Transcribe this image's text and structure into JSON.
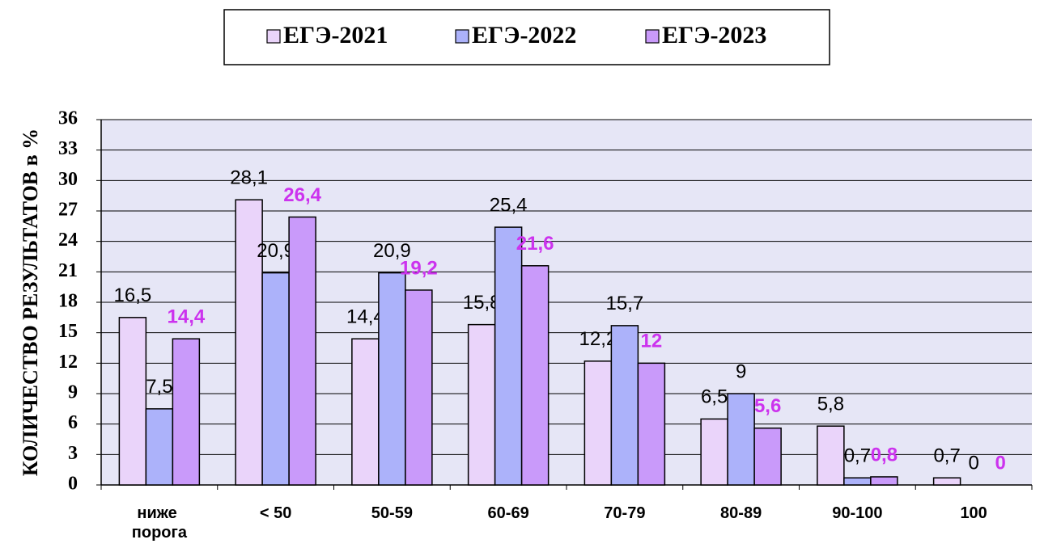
{
  "chart_data": {
    "type": "bar",
    "y_axis_label": "КОЛИЧЕСТВО РЕЗУЛЬТАТОВ в %",
    "categories": [
      "ниже\nпорога",
      "< 50",
      "50-59",
      "60-69",
      "70-79",
      "80-89",
      "90-100",
      "100"
    ],
    "series": [
      {
        "name": "ЕГЭ-2021",
        "color": "#ead4fa",
        "label_color": "#000000",
        "values": [
          16.5,
          28.1,
          14.4,
          15.8,
          12.2,
          6.5,
          5.8,
          0.7
        ],
        "value_labels": [
          "16,5",
          "28,1",
          "14,4",
          "15,8",
          "12,2",
          "6,5",
          "5,8",
          "0,7"
        ]
      },
      {
        "name": "ЕГЭ-2022",
        "color": "#acb2fa",
        "label_color": "#000000",
        "values": [
          7.5,
          20.9,
          20.9,
          25.4,
          15.7,
          9,
          0.7,
          0
        ],
        "value_labels": [
          "7,5",
          "20,9",
          "20,9",
          "25,4",
          "15,7",
          "9",
          "0,7",
          "0"
        ]
      },
      {
        "name": "ЕГЭ-2023",
        "color": "#c99afa",
        "label_color": "#cc33ee",
        "values": [
          14.4,
          26.4,
          19.2,
          21.6,
          12,
          5.6,
          0.8,
          0
        ],
        "value_labels": [
          "14,4",
          "26,4",
          "19,2",
          "21,6",
          "12",
          "5,6",
          "0,8",
          "0"
        ]
      }
    ],
    "ylim": [
      0,
      36
    ],
    "yticks": [
      0,
      3,
      6,
      9,
      12,
      15,
      18,
      21,
      24,
      27,
      30,
      33,
      36
    ],
    "grid": true,
    "legend": "top"
  }
}
